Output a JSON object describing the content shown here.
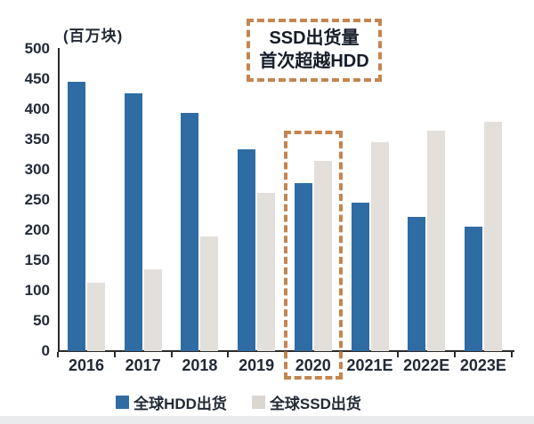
{
  "chart_data": {
    "type": "bar",
    "title": "",
    "unit_label": "(百万块)",
    "categories": [
      "2016",
      "2017",
      "2018",
      "2019",
      "2020",
      "2021E",
      "2022E",
      "2023E"
    ],
    "series": [
      {
        "name": "全球HDD出货",
        "color": "#2f6ca3",
        "values": [
          445,
          426,
          394,
          334,
          278,
          245,
          222,
          206
        ]
      },
      {
        "name": "全球SSD出货",
        "color": "#e3dfda",
        "values": [
          113,
          136,
          190,
          262,
          315,
          345,
          364,
          379
        ]
      }
    ],
    "ylim": [
      0,
      500
    ],
    "yticks": [
      0,
      50,
      100,
      150,
      200,
      250,
      300,
      350,
      400,
      450,
      500
    ],
    "grid": false,
    "legend_position": "bottom",
    "highlighted_category": "2020",
    "annotation": {
      "line1": "SSD出货量",
      "line2": "首次超越HDD"
    },
    "colors": {
      "hdd": "#2f6ca3",
      "ssd": "#e3dfda",
      "legend_ssd_swatch": "#dad6d2",
      "dashed_border": "#c5854f",
      "axis": "#2b2b2b",
      "text": "#222a36",
      "bottom_strip": "#e9ebed"
    }
  }
}
